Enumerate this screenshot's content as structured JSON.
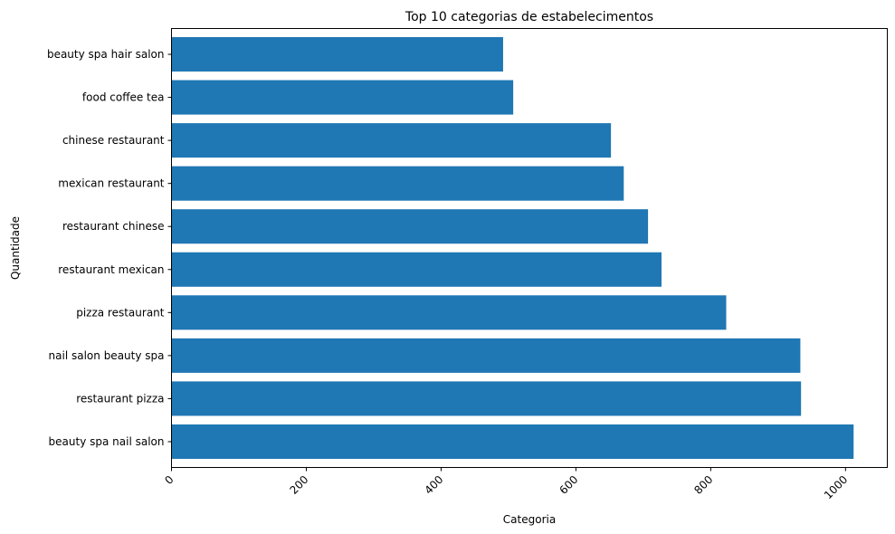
{
  "chart_data": {
    "type": "bar",
    "orientation": "horizontal",
    "title": "Top 10 categorias de estabelecimentos",
    "xlabel": "Categoria",
    "ylabel": "Quantidade",
    "categories": [
      "beauty spa nail salon",
      "restaurant pizza",
      "nail salon beauty spa",
      "pizza restaurant",
      "restaurant mexican",
      "restaurant chinese",
      "mexican restaurant",
      "chinese restaurant",
      "food coffee tea",
      "beauty spa hair salon"
    ],
    "values": [
      1012,
      934,
      933,
      823,
      727,
      707,
      671,
      652,
      507,
      492
    ],
    "xlim": [
      0,
      1062
    ],
    "xticks": [
      0,
      200,
      400,
      600,
      800,
      1000
    ],
    "grid": false,
    "legend": "none",
    "bar_color": "#1f77b4",
    "x_tick_rotation": 45
  }
}
